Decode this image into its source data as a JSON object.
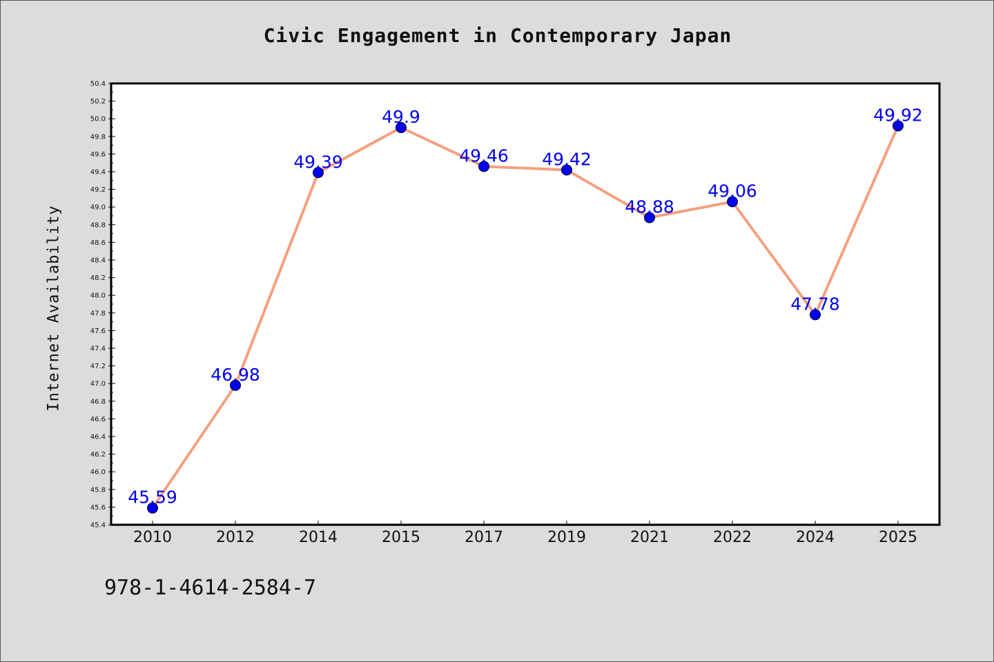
{
  "chart_data": {
    "type": "line",
    "title": "Civic Engagement in Contemporary Japan",
    "xlabel": "",
    "ylabel": "Internet Availability",
    "categories": [
      "2010",
      "2012",
      "2014",
      "2015",
      "2017",
      "2019",
      "2021",
      "2022",
      "2024",
      "2025"
    ],
    "series": [
      {
        "values": [
          45.59,
          46.98,
          49.39,
          49.9,
          49.46,
          49.42,
          48.88,
          49.06,
          47.78,
          49.92
        ],
        "data_labels": [
          "45.59",
          "46.98",
          "49.39",
          "49.9",
          "49.46",
          "49.42",
          "48.88",
          "49.06",
          "47.78",
          "49.92"
        ],
        "line_color": "#f4a07e",
        "marker_color": "#0000ee",
        "label_color": "#0000ee"
      }
    ],
    "ylim": [
      45.4,
      50.4
    ],
    "yticks": [
      "45.4",
      "45.6",
      "45.8",
      "46.0",
      "46.2",
      "46.4",
      "46.6",
      "46.8",
      "47.0",
      "47.2",
      "47.4",
      "47.6",
      "47.8",
      "48.0",
      "48.2",
      "48.4",
      "48.6",
      "48.8",
      "49.0",
      "49.2",
      "49.4",
      "49.6",
      "49.8",
      "50.0",
      "50.2",
      "50.4"
    ],
    "grid": false,
    "legend": "none"
  },
  "footer": {
    "isbn": "978-1-4614-2584-7"
  },
  "colors": {
    "background": "#dcdcdc",
    "plot_background": "#ffffff",
    "axis": "#000000"
  }
}
